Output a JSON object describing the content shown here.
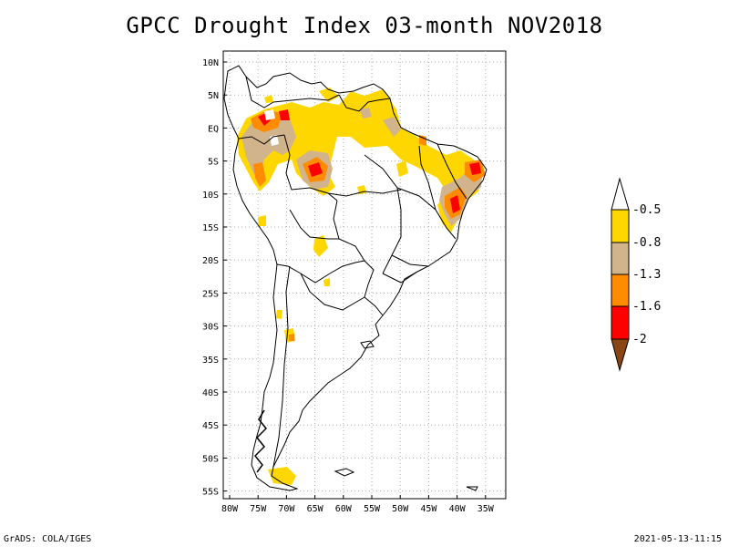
{
  "title": "GPCC Drought Index 03-month NOV2018",
  "credit_left": "GrADS: COLA/IGES",
  "credit_right": "2021-05-13-11:15",
  "map": {
    "lat_labels": [
      "10N",
      "5N",
      "EQ",
      "5S",
      "10S",
      "15S",
      "20S",
      "25S",
      "30S",
      "35S",
      "40S",
      "45S",
      "50S",
      "55S"
    ],
    "lon_labels": [
      "80W",
      "75W",
      "70W",
      "65W",
      "60W",
      "55W",
      "50W",
      "45W",
      "40W",
      "35W"
    ],
    "extent": {
      "lon_min": -81,
      "lon_max": -32,
      "lat_min": -56,
      "lat_max": 12
    }
  },
  "legend": {
    "labels": [
      "-0.5",
      "-0.8",
      "-1.3",
      "-1.6",
      "-2"
    ],
    "colors": [
      "#ffffff",
      "#ffd700",
      "#d2b48c",
      "#ff8c00",
      "#ff0000",
      "#8b4513"
    ],
    "triangle_top_color": "#ffffff",
    "triangle_bottom_color": "#8b4513",
    "boxes": [
      "#ffd700",
      "#d2b48c",
      "#ff8c00",
      "#ff0000"
    ]
  }
}
